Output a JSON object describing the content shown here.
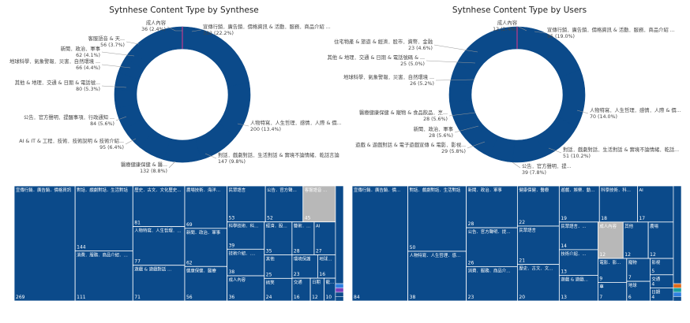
{
  "colors": {
    "primary": "#0b4a8a",
    "ring_highlight": "#c23b8c",
    "treemap_gray": "#b8b8b8",
    "treemap_border": "#ffffff",
    "accent_blue": "#2f7fe0",
    "accent_purple": "#7a3fb8",
    "accent_orange": "#e06a1b",
    "accent_teal": "#1aa0a0"
  },
  "chart_data": [
    {
      "type": "pie",
      "title": "Sytnhese Content Type by Synthese",
      "donut": true,
      "labels_shown": [
        {
          "text": "成人內容",
          "value": "36 (2.4%)"
        },
        {
          "text": "客服語音 & 天...",
          "value": "56 (3.7%)"
        },
        {
          "text": "新聞．政治．軍事",
          "value": "62 (4.1%)"
        },
        {
          "text": "地球科學．氣象警報．災害．自然環境 ...",
          "value": "66 (4.4%)"
        },
        {
          "text": "其他 & 地理．交通 & 日期 & 電話號...",
          "value": "80 (5.3%)"
        },
        {
          "text": "公告．官方聲明．提醒事項．行政通知 ...",
          "value": "84 (5.6%)"
        },
        {
          "text": "AI & IT & 工程．技術．技術說明 & 技術介紹...",
          "value": "95 (6.4%)"
        },
        {
          "text": "醫療健康保健 & 醫...",
          "value": "132 (8.8%)"
        },
        {
          "text": "對話．戲劇對話．生活對話 & 實境不論情緒．乾話言論",
          "value": "147 (9.8%)"
        },
        {
          "text": "人物特寫．人生哲理．感情．人際 & 價...",
          "value": "200 (13.4%)"
        },
        {
          "text": "宣傳行銷．廣告銷．價格資訊 & 活動．服務．商品介紹 ...",
          "value": "332 (22.2%)"
        }
      ],
      "values": [
        332,
        200,
        147,
        132,
        95,
        84,
        80,
        66,
        62,
        56,
        36,
        201
      ]
    },
    {
      "type": "pie",
      "title": "Sytnhese Content Type by Users",
      "donut": true,
      "labels_shown": [
        {
          "text": "成人內容",
          "value": "12 (2.4%)"
        },
        {
          "text": "住宅物產 & 旅遊 & 經濟．股市．資幣．金融",
          "value": "23 (4.6%)"
        },
        {
          "text": "其他 & 地理．交通 & 日期 & 電話號碼 & ...",
          "value": "25 (5.0%)"
        },
        {
          "text": "地球科學．氣象警報．災害．自然環境 ...",
          "value": "26 (5.2%)"
        },
        {
          "text": "醫療健康保健 & 寵物 & 食品飲品．烹...",
          "value": "28 (5.6%)"
        },
        {
          "text": "新聞．政治．軍事",
          "value": "28 (5.6%)"
        },
        {
          "text": "遊戲 & 遊戲對話 & 電子遊戲宣傳 & 電影．影視...",
          "value": "29 (5.8%)"
        },
        {
          "text": "公告．官方聲明．提...",
          "value": "39 (7.8%)"
        },
        {
          "text": "對話．戲劇對話．生活對話 & 實境不論情緒．乾話...",
          "value": "51 (10.2%)"
        },
        {
          "text": "人物特寫．人生哲理．感情．人際 & 價...",
          "value": "70 (14.0%)"
        },
        {
          "text": "宣傳行銷．廣告銷．價格資訊 & 活動．服務．商品介紹 ...",
          "value": "95 (19.0%)"
        }
      ],
      "values": [
        95,
        70,
        51,
        39,
        29,
        28,
        28,
        26,
        25,
        23,
        12,
        74
      ]
    },
    {
      "type": "treemap",
      "title": "",
      "items": [
        {
          "label": "宣傳行銷．廣告銷．價格資訊",
          "value": 269
        },
        {
          "label": "對話．戲劇對話．生活對話",
          "value": 144
        },
        {
          "label": "消費．服務．商品介紹．...",
          "value": 111
        },
        {
          "label": "歷史．古文．文化歷史．...",
          "value": 81
        },
        {
          "label": "人物特寫．人生哲理．感...",
          "value": 77
        },
        {
          "label": "遊戲 & 遊戲對話 & 電子...",
          "value": 71
        },
        {
          "label": "農場技術．海洋漁業．農...",
          "value": 69
        },
        {
          "label": "新聞．政治．軍事",
          "value": 62
        },
        {
          "label": "健康保健．醫療",
          "value": 56
        },
        {
          "label": "民眾語言",
          "value": 53
        },
        {
          "label": "公告．官方聲明．...",
          "value": 52
        },
        {
          "label": "客服語音 & 親切...",
          "value": 45
        },
        {
          "label": "科學技術．科普...",
          "value": 39
        },
        {
          "label": "技術介紹．...",
          "value": 38
        },
        {
          "label": "AI",
          "value": 27
        },
        {
          "label": "其他",
          "value": 25
        },
        {
          "label": "搞笑",
          "value": 24
        },
        {
          "label": "環境保護",
          "value": 23
        },
        {
          "label": "成人內容",
          "value": 36
        },
        {
          "label": "經濟．股...",
          "value": 35
        },
        {
          "label": "藝術．...",
          "value": 28
        },
        {
          "label": "地球科學",
          "value": 16
        },
        {
          "label": "交通",
          "value": 16
        },
        {
          "label": "日期",
          "value": 12
        },
        {
          "label": "寵物",
          "value": 10
        }
      ]
    },
    {
      "type": "treemap",
      "title": "",
      "items": [
        {
          "label": "宣傳行銷．廣告銷．價格資訊",
          "value": 84
        },
        {
          "label": "對話．戲劇對話．生活對話",
          "value": 50
        },
        {
          "label": "人物特寫．人生哲理．感...",
          "value": 38
        },
        {
          "label": "新聞．政治．軍事",
          "value": 28
        },
        {
          "label": "消費．服務．商品介紹．...",
          "value": 23
        },
        {
          "label": "公告．官方聲明．提醒...",
          "value": 26
        },
        {
          "label": "健康保健．醫療",
          "value": 22
        },
        {
          "label": "民眾語言",
          "value": 21
        },
        {
          "label": "歷史．古文．文化歷史...",
          "value": 20
        },
        {
          "label": "遊戲．娛樂．動畫．...",
          "value": 19
        },
        {
          "label": "科學技術．科普．...",
          "value": 18
        },
        {
          "label": "AI",
          "value": 17
        },
        {
          "label": "民眾語言．...",
          "value": 14
        },
        {
          "label": "技術介紹．...",
          "value": 13
        },
        {
          "label": "遊戲 & 遊戲對話．...",
          "value": 13
        },
        {
          "label": "成人內容",
          "value": 12
        },
        {
          "label": "其他",
          "value": 12
        },
        {
          "label": "農場",
          "value": 12
        },
        {
          "label": "車",
          "value": 7
        },
        {
          "label": "電影．影...",
          "value": 9
        },
        {
          "label": "寵物",
          "value": 7
        },
        {
          "label": "地球",
          "value": 6
        },
        {
          "label": "影視",
          "value": 5
        },
        {
          "label": "交通",
          "value": 4
        },
        {
          "label": "日期",
          "value": 4
        }
      ]
    }
  ]
}
